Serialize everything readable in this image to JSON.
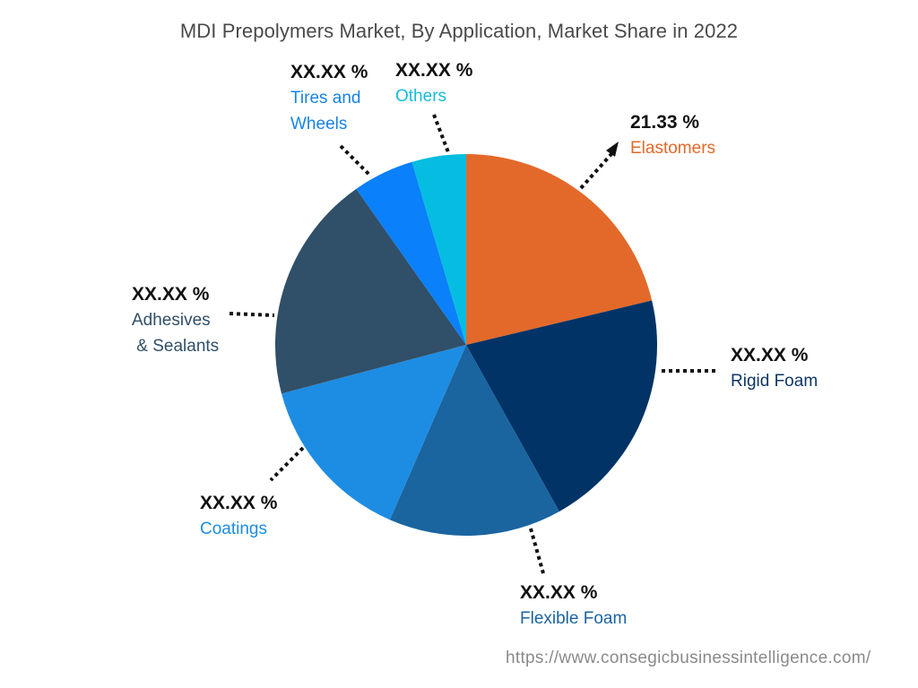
{
  "chart_data": {
    "type": "pie",
    "title": "MDI Prepolymers Market, By Application, Market Share in 2022",
    "categories": [
      "Elastomers",
      "Rigid Foam",
      "Flexible Foam",
      "Coatings",
      "Adhesives & Sealants",
      "Tires and Wheels",
      "Others"
    ],
    "values": [
      21.33,
      20.7,
      14.7,
      14.4,
      19.4,
      5.2,
      4.6
    ],
    "value_labels": [
      "21.33 %",
      "XX.XX %",
      "XX.XX %",
      "XX.XX %",
      "XX.XX %",
      "XX.XX %",
      "XX.XX %"
    ],
    "colors": [
      "#E3692A",
      "#013366",
      "#1A64A0",
      "#1D8DE3",
      "#304F68",
      "#0A80FA",
      "#04BDE0"
    ],
    "start_angle_deg": 0,
    "direction": "clockwise",
    "legend": "none (callout labels)",
    "note": "Only Elastomers value is disclosed; other values are masked as XX.XX % and estimated from slice angles"
  },
  "title": "MDI Prepolymers Market, By Application, Market Share in 2022",
  "labels": {
    "elastomers": {
      "pct": "21.33 %",
      "name": "Elastomers",
      "color": "#E3692A"
    },
    "rigid_foam": {
      "pct": "XX.XX %",
      "name": "Rigid Foam",
      "color": "#0E3764"
    },
    "flexible_foam": {
      "pct": "XX.XX %",
      "name": "Flexible Foam",
      "color": "#1A64A0"
    },
    "coatings": {
      "pct": "XX.XX %",
      "name": "Coatings",
      "color": "#1D8DE3"
    },
    "adhesives": {
      "pct": "XX.XX %",
      "name1": "Adhesives",
      "name2": " & Sealants",
      "color": "#304F68"
    },
    "tires": {
      "pct": "XX.XX %",
      "name1": "Tires and",
      "name2": "Wheels",
      "color": "#1783E8"
    },
    "others": {
      "pct": "XX.XX %",
      "name": "Others",
      "color": "#16BCD8"
    }
  },
  "source_url": "https://www.consegicbusinessintelligence.com/"
}
